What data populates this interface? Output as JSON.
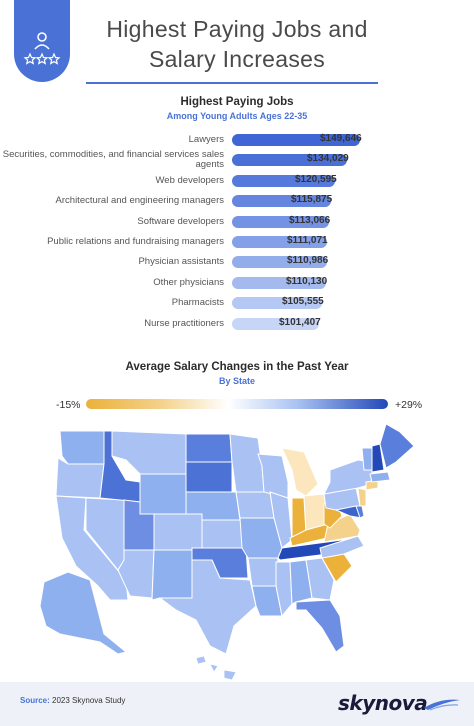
{
  "header": {
    "title_line1": "Highest Paying Jobs and",
    "title_line2": "Salary Increases",
    "badge_icon": "star-person-icon",
    "accent": "#4a72d6"
  },
  "bar_section": {
    "title": "Highest Paying Jobs",
    "subtitle": "Among Young Adults Ages 22-35"
  },
  "map_section": {
    "title": "Average Salary Changes in the Past Year",
    "subtitle": "By State",
    "legend_low": "-15%",
    "legend_high": "+29%"
  },
  "chart_data": [
    {
      "type": "bar",
      "orientation": "horizontal",
      "title": "Highest Paying Jobs",
      "subtitle": "Among Young Adults Ages 22-35",
      "categories": [
        "Lawyers",
        "Securities, commodities, and financial services sales agents",
        "Web developers",
        "Architectural and engineering managers",
        "Software developers",
        "Public relations and fundraising managers",
        "Physician assistants",
        "Other physicians",
        "Pharmacists",
        "Nurse practitioners"
      ],
      "values": [
        149646,
        134029,
        120595,
        115875,
        113066,
        111071,
        110986,
        110130,
        105555,
        101407
      ],
      "value_labels": [
        "$149,646",
        "$134,029",
        "$120,595",
        "$115,875",
        "$113,066",
        "$111,071",
        "$110,986",
        "$110,130",
        "$105,555",
        "$101,407"
      ],
      "colors": [
        "#3f66d4",
        "#4a70d8",
        "#5679dc",
        "#6585df",
        "#7593e4",
        "#84a0e8",
        "#93adeb",
        "#a4baef",
        "#b5c8f3",
        "#c7d6f7"
      ]
    },
    {
      "type": "heatmap",
      "title": "Average Salary Changes in the Past Year",
      "subtitle": "By State",
      "scale_min": -15,
      "scale_max": 29,
      "scale_labels": [
        "-15%",
        "+29%"
      ]
    }
  ],
  "footer": {
    "source_label": "Source:",
    "source_text": " 2023 Skynova Study",
    "logo": "skynova",
    "logo_icon": "swoosh-icon"
  }
}
